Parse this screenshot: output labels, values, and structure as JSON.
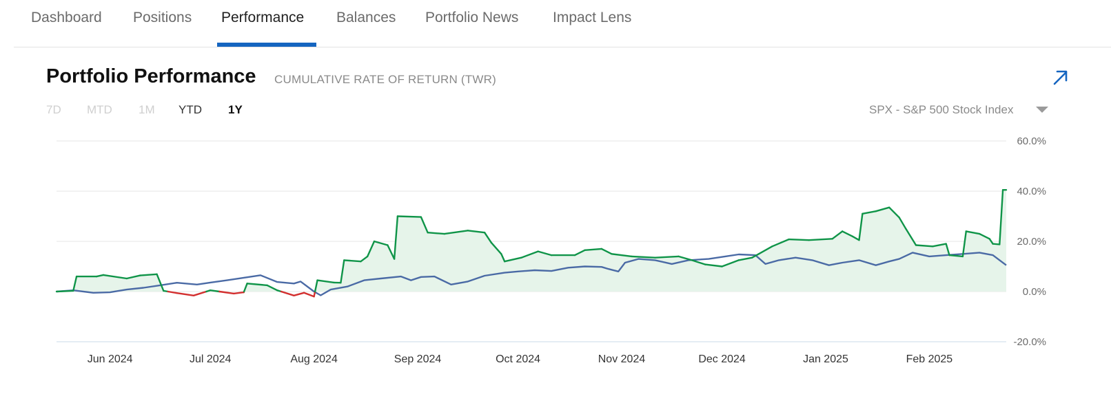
{
  "tabs": [
    {
      "label": "Dashboard",
      "active": false
    },
    {
      "label": "Positions",
      "active": false
    },
    {
      "label": "Performance",
      "active": true
    },
    {
      "label": "Balances",
      "active": false
    },
    {
      "label": "Portfolio News",
      "active": false
    },
    {
      "label": "Impact Lens",
      "active": false
    }
  ],
  "header": {
    "title": "Portfolio Performance",
    "subtitle": "CUMULATIVE RATE OF RETURN (TWR)"
  },
  "time_ranges": [
    {
      "label": "7D",
      "state": "disabled"
    },
    {
      "label": "MTD",
      "state": "disabled"
    },
    {
      "label": "1M",
      "state": "disabled"
    },
    {
      "label": "YTD",
      "state": "enabled"
    },
    {
      "label": "1Y",
      "state": "selected"
    }
  ],
  "benchmark": {
    "selected": "SPX - S&P 500 Stock Index"
  },
  "colors": {
    "accent": "#1565c0",
    "portfolio_positive": "#0f9448",
    "portfolio_negative": "#d32f2f",
    "portfolio_fill": "#e6f4ea",
    "benchmark": "#4a6aa5",
    "grid": "#e6e6e6"
  },
  "icons": {
    "expand": "arrow-up-right-icon",
    "dropdown": "caret-down-icon"
  },
  "chart_data": {
    "type": "line",
    "y_ticks": [
      "60.0%",
      "40.0%",
      "20.0%",
      "0.0%",
      "-20.0%"
    ],
    "ylim": [
      -20,
      60
    ],
    "x_range": [
      "2024-05-20",
      "2025-02-28"
    ],
    "x_ticks": [
      {
        "label": "Jun 2024",
        "date": "2024-06-05"
      },
      {
        "label": "Jul 2024",
        "date": "2024-07-05"
      },
      {
        "label": "Aug 2024",
        "date": "2024-08-05"
      },
      {
        "label": "Sep 2024",
        "date": "2024-09-05"
      },
      {
        "label": "Oct 2024",
        "date": "2024-10-05"
      },
      {
        "label": "Nov 2024",
        "date": "2024-11-05"
      },
      {
        "label": "Dec 2024",
        "date": "2024-12-05"
      },
      {
        "label": "Jan 2025",
        "date": "2025-01-05"
      },
      {
        "label": "Feb 2025",
        "date": "2025-02-05"
      }
    ],
    "grid": true,
    "legend": "none",
    "series": [
      {
        "points": [
          [
            "2024-05-20",
            0.0
          ],
          [
            "2024-05-25",
            0.3
          ],
          [
            "2024-05-26",
            6.0
          ],
          [
            "2024-06-01",
            6.0
          ],
          [
            "2024-06-03",
            6.6
          ],
          [
            "2024-06-10",
            5.2
          ],
          [
            "2024-06-14",
            6.4
          ],
          [
            "2024-06-19",
            6.9
          ],
          [
            "2024-06-21",
            0.3
          ],
          [
            "2024-06-25",
            -0.6
          ],
          [
            "2024-06-30",
            -1.6
          ],
          [
            "2024-07-05",
            0.5
          ],
          [
            "2024-07-12",
            -0.8
          ],
          [
            "2024-07-15",
            -0.3
          ],
          [
            "2024-07-16",
            3.2
          ],
          [
            "2024-07-22",
            2.5
          ],
          [
            "2024-07-25",
            0.5
          ],
          [
            "2024-07-30",
            -1.6
          ],
          [
            "2024-08-02",
            -0.5
          ],
          [
            "2024-08-05",
            -2.0
          ],
          [
            "2024-08-06",
            4.5
          ],
          [
            "2024-08-11",
            3.6
          ],
          [
            "2024-08-13",
            3.5
          ],
          [
            "2024-08-14",
            12.5
          ],
          [
            "2024-08-19",
            12.0
          ],
          [
            "2024-08-21",
            14.0
          ],
          [
            "2024-08-23",
            20.0
          ],
          [
            "2024-08-27",
            18.5
          ],
          [
            "2024-08-29",
            13.0
          ],
          [
            "2024-08-30",
            30.0
          ],
          [
            "2024-09-06",
            29.7
          ],
          [
            "2024-09-08",
            23.5
          ],
          [
            "2024-09-13",
            23.0
          ],
          [
            "2024-09-20",
            24.3
          ],
          [
            "2024-09-25",
            23.5
          ],
          [
            "2024-09-27",
            19.5
          ],
          [
            "2024-09-30",
            15.0
          ],
          [
            "2024-10-01",
            12.0
          ],
          [
            "2024-10-06",
            13.5
          ],
          [
            "2024-10-11",
            16.0
          ],
          [
            "2024-10-15",
            14.5
          ],
          [
            "2024-10-22",
            14.5
          ],
          [
            "2024-10-25",
            16.5
          ],
          [
            "2024-10-30",
            17.0
          ],
          [
            "2024-11-02",
            15.0
          ],
          [
            "2024-11-08",
            14.0
          ],
          [
            "2024-11-15",
            13.5
          ],
          [
            "2024-11-22",
            14.0
          ],
          [
            "2024-11-26",
            12.5
          ],
          [
            "2024-11-30",
            10.8
          ],
          [
            "2024-12-05",
            10.0
          ],
          [
            "2024-12-10",
            12.5
          ],
          [
            "2024-12-14",
            13.5
          ],
          [
            "2024-12-16",
            15.0
          ],
          [
            "2024-12-20",
            18.0
          ],
          [
            "2024-12-25",
            20.8
          ],
          [
            "2024-12-31",
            20.5
          ],
          [
            "2025-01-07",
            21.0
          ],
          [
            "2025-01-10",
            24.0
          ],
          [
            "2025-01-13",
            22.0
          ],
          [
            "2025-01-15",
            20.5
          ],
          [
            "2025-01-16",
            31.0
          ],
          [
            "2025-01-20",
            32.0
          ],
          [
            "2025-01-24",
            33.5
          ],
          [
            "2025-01-27",
            29.5
          ],
          [
            "2025-01-29",
            25.0
          ],
          [
            "2025-02-01",
            18.5
          ],
          [
            "2025-02-06",
            18.0
          ],
          [
            "2025-02-10",
            19.0
          ],
          [
            "2025-02-11",
            14.5
          ],
          [
            "2025-02-15",
            14.0
          ],
          [
            "2025-02-16",
            24.0
          ],
          [
            "2025-02-20",
            23.0
          ],
          [
            "2025-02-23",
            21.0
          ],
          [
            "2025-02-24",
            19.0
          ],
          [
            "2025-02-26",
            18.8
          ],
          [
            "2025-02-27",
            40.5
          ],
          [
            "2025-02-28",
            40.5
          ]
        ]
      },
      {
        "points": [
          [
            "2024-05-20",
            0.0
          ],
          [
            "2024-05-25",
            0.5
          ],
          [
            "2024-05-31",
            -0.5
          ],
          [
            "2024-06-05",
            -0.3
          ],
          [
            "2024-06-10",
            0.8
          ],
          [
            "2024-06-15",
            1.5
          ],
          [
            "2024-06-20",
            2.5
          ],
          [
            "2024-06-25",
            3.5
          ],
          [
            "2024-07-01",
            2.8
          ],
          [
            "2024-07-05",
            3.6
          ],
          [
            "2024-07-10",
            4.5
          ],
          [
            "2024-07-15",
            5.5
          ],
          [
            "2024-07-20",
            6.5
          ],
          [
            "2024-07-25",
            3.8
          ],
          [
            "2024-07-30",
            3.2
          ],
          [
            "2024-08-01",
            4.0
          ],
          [
            "2024-08-05",
            0.0
          ],
          [
            "2024-08-07",
            -1.5
          ],
          [
            "2024-08-10",
            0.8
          ],
          [
            "2024-08-15",
            2.0
          ],
          [
            "2024-08-20",
            4.5
          ],
          [
            "2024-08-25",
            5.2
          ],
          [
            "2024-08-31",
            6.0
          ],
          [
            "2024-09-03",
            4.5
          ],
          [
            "2024-09-06",
            5.8
          ],
          [
            "2024-09-10",
            6.0
          ],
          [
            "2024-09-15",
            2.8
          ],
          [
            "2024-09-20",
            4.0
          ],
          [
            "2024-09-25",
            6.3
          ],
          [
            "2024-10-01",
            7.5
          ],
          [
            "2024-10-05",
            8.0
          ],
          [
            "2024-10-10",
            8.5
          ],
          [
            "2024-10-15",
            8.2
          ],
          [
            "2024-10-20",
            9.5
          ],
          [
            "2024-10-25",
            10.0
          ],
          [
            "2024-10-30",
            9.8
          ],
          [
            "2024-11-01",
            9.0
          ],
          [
            "2024-11-04",
            8.0
          ],
          [
            "2024-11-06",
            11.5
          ],
          [
            "2024-11-10",
            13.0
          ],
          [
            "2024-11-15",
            12.5
          ],
          [
            "2024-11-20",
            11.0
          ],
          [
            "2024-11-25",
            12.5
          ],
          [
            "2024-12-01",
            13.0
          ],
          [
            "2024-12-06",
            14.0
          ],
          [
            "2024-12-10",
            14.8
          ],
          [
            "2024-12-15",
            14.5
          ],
          [
            "2024-12-18",
            11.0
          ],
          [
            "2024-12-22",
            12.5
          ],
          [
            "2024-12-27",
            13.5
          ],
          [
            "2025-01-01",
            12.5
          ],
          [
            "2025-01-06",
            10.5
          ],
          [
            "2025-01-10",
            11.5
          ],
          [
            "2025-01-15",
            12.5
          ],
          [
            "2025-01-20",
            10.5
          ],
          [
            "2025-01-24",
            12.0
          ],
          [
            "2025-01-27",
            13.0
          ],
          [
            "2025-01-31",
            15.5
          ],
          [
            "2025-02-05",
            14.0
          ],
          [
            "2025-02-10",
            14.5
          ],
          [
            "2025-02-15",
            15.0
          ],
          [
            "2025-02-20",
            15.5
          ],
          [
            "2025-02-24",
            14.5
          ],
          [
            "2025-02-28",
            10.5
          ]
        ]
      }
    ]
  }
}
